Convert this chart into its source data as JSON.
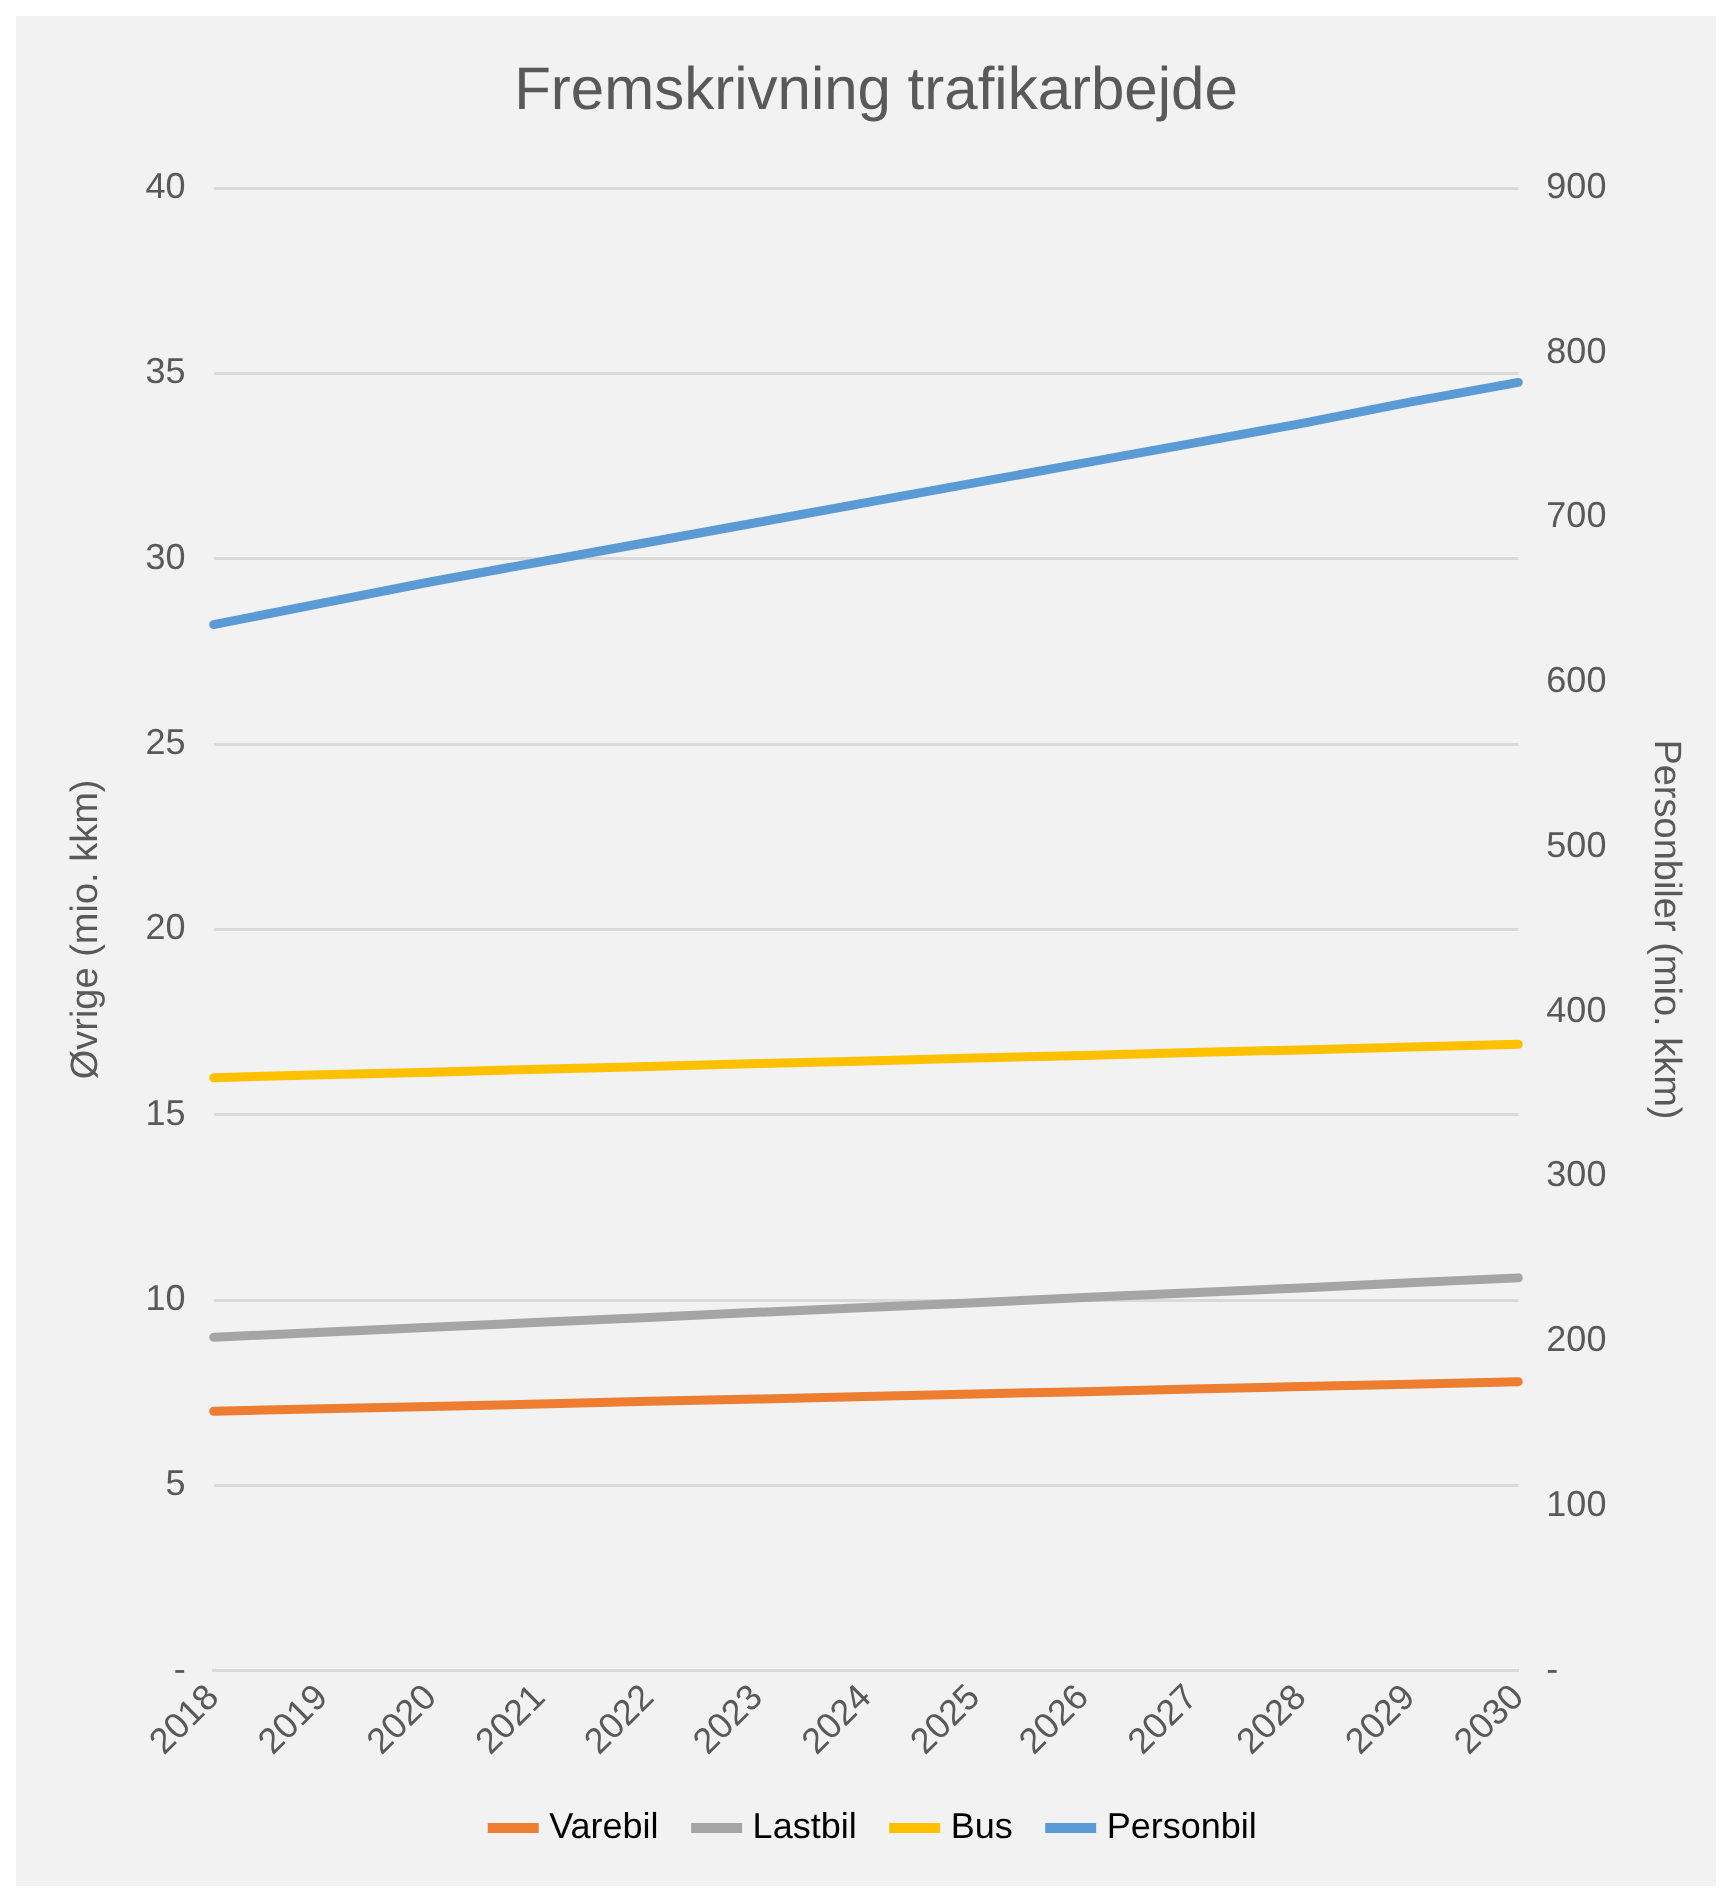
{
  "chart_data": {
    "type": "line",
    "title": "Fremskrivning trafikarbejde",
    "ylabel": "Øvrige (mio. kkm)",
    "y2label": "Personbiler (mio. kkm)",
    "categories": [
      "2018",
      "2019",
      "2020",
      "2021",
      "2022",
      "2023",
      "2024",
      "2025",
      "2026",
      "2027",
      "2028",
      "2029",
      "2030"
    ],
    "series": [
      {
        "name": "Varebil",
        "color": "#ed7d31",
        "values": [
          7.0,
          7.07,
          7.13,
          7.2,
          7.27,
          7.33,
          7.4,
          7.47,
          7.53,
          7.6,
          7.67,
          7.73,
          7.8
        ]
      },
      {
        "name": "Lastbil",
        "color": "#a5a5a5",
        "values": [
          9.0,
          9.13,
          9.27,
          9.4,
          9.53,
          9.67,
          9.8,
          9.93,
          10.07,
          10.2,
          10.33,
          10.47,
          10.6
        ]
      },
      {
        "name": "Bus",
        "color": "#ffc000",
        "values": [
          16.0,
          16.08,
          16.15,
          16.23,
          16.3,
          16.38,
          16.45,
          16.53,
          16.6,
          16.68,
          16.75,
          16.83,
          16.9
        ]
      },
      {
        "name": "Personbil",
        "color": "#5b9bd5",
        "axis": "y2",
        "values": [
          635,
          648,
          661,
          673,
          685,
          697,
          709,
          721,
          733,
          745,
          757,
          770,
          782
        ]
      }
    ],
    "ylim": [
      0,
      40
    ],
    "yticks": [
      {
        "value": 0,
        "label": "-"
      },
      5,
      10,
      15,
      20,
      25,
      30,
      35,
      40
    ],
    "y2lim": [
      0,
      900
    ],
    "y2ticks": [
      {
        "value": 0,
        "label": "-"
      },
      100,
      200,
      300,
      400,
      500,
      600,
      700,
      800,
      900
    ],
    "grid": "y",
    "legend": "bottom",
    "marker": "none",
    "line_style": "solid"
  }
}
